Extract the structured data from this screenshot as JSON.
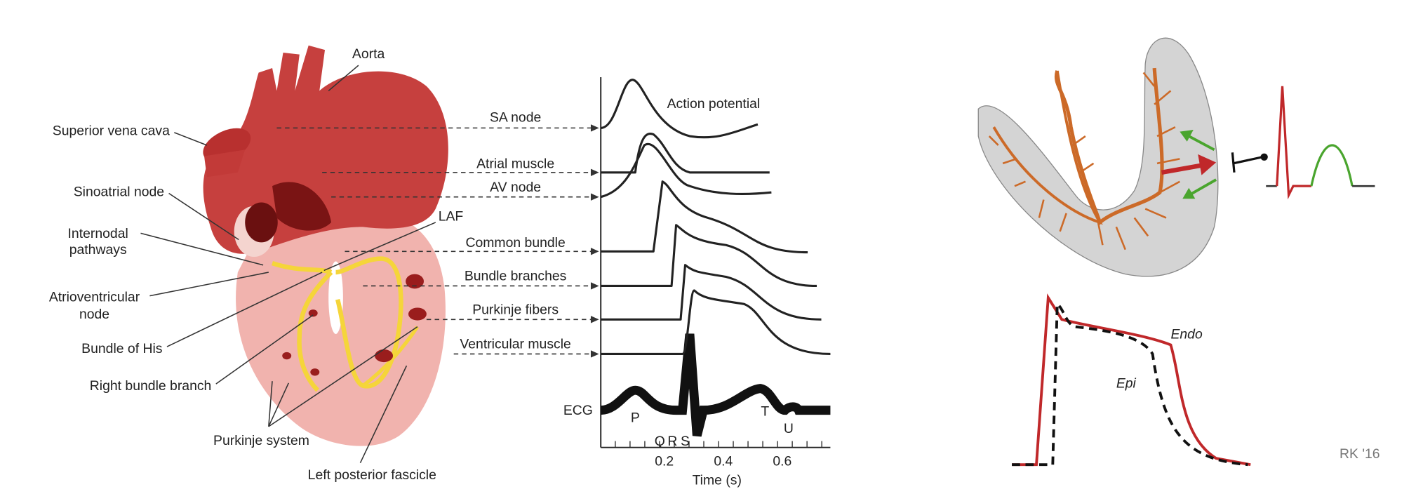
{
  "heart": {
    "aorta": "Aorta",
    "superior_vena_cava": "Superior vena cava",
    "sinoatrial_node": "Sinoatrial node",
    "internodal_pathways": [
      "Internodal",
      "pathways"
    ],
    "atrioventricular_node": [
      "Atrioventricular",
      "node"
    ],
    "bundle_of_his": "Bundle of His",
    "right_bundle_branch": "Right bundle branch",
    "purkinje_system": "Purkinje system",
    "left_posterior_fascicle": "Left posterior fascicle",
    "laf": "LAF"
  },
  "action_potentials": {
    "title": "Action potential",
    "traces": [
      "SA node",
      "Atrial muscle",
      "AV node",
      "Common bundle",
      "Bundle branches",
      "Purkinje fibers",
      "Ventricular muscle"
    ],
    "ecg": {
      "label": "ECG",
      "waves": [
        "P",
        "Q",
        "R",
        "S",
        "T",
        "U"
      ]
    },
    "x_axis": {
      "label": "Time (s)",
      "ticks": [
        "0.2",
        "0.4",
        "0.6"
      ]
    }
  },
  "ventricle_panel": {
    "endo": "Endo",
    "epi": "Epi",
    "credit": "RK '16"
  }
}
